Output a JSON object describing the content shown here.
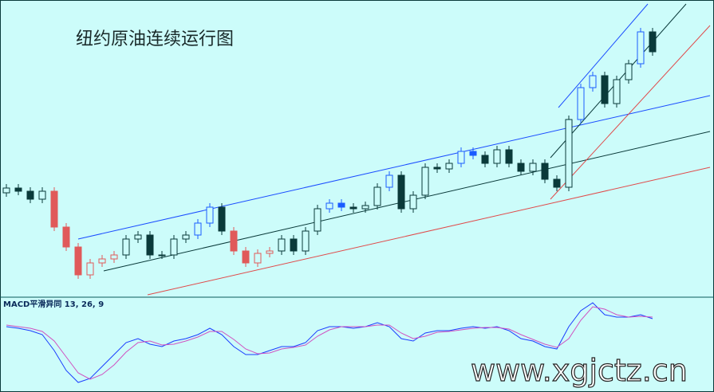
{
  "chart_data": [
    {
      "type": "candlestick",
      "title": "纽约原油连续运行图",
      "open": [
        138,
        144,
        140,
        130,
        140,
        95,
        70,
        35,
        50,
        55,
        60,
        80,
        85,
        60,
        60,
        80,
        85,
        100,
        120,
        90,
        65,
        50,
        62,
        65,
        80,
        65,
        90,
        118,
        125,
        120,
        118,
        122,
        145,
        160,
        118,
        135,
        170,
        168,
        175,
        190,
        185,
        175,
        192,
        175,
        165,
        175,
        155,
        145,
        230,
        270,
        285,
        250,
        280,
        300,
        340
      ],
      "high": [
        149,
        149,
        145,
        145,
        145,
        100,
        75,
        55,
        60,
        65,
        85,
        90,
        90,
        65,
        85,
        90,
        105,
        125,
        125,
        95,
        70,
        67,
        70,
        85,
        85,
        95,
        123,
        130,
        130,
        125,
        127,
        150,
        165,
        165,
        140,
        175,
        175,
        180,
        195,
        195,
        190,
        197,
        197,
        180,
        180,
        180,
        160,
        235,
        275,
        290,
        290,
        285,
        305,
        345,
        345
      ],
      "low": [
        133,
        135,
        125,
        125,
        90,
        65,
        30,
        30,
        45,
        50,
        55,
        75,
        55,
        55,
        55,
        75,
        80,
        95,
        85,
        60,
        45,
        45,
        57,
        60,
        60,
        60,
        85,
        113,
        115,
        113,
        113,
        117,
        140,
        113,
        113,
        130,
        163,
        163,
        170,
        180,
        170,
        170,
        170,
        160,
        160,
        150,
        140,
        140,
        225,
        265,
        245,
        245,
        275,
        295,
        310
      ],
      "close": [
        144,
        140,
        130,
        140,
        95,
        70,
        35,
        50,
        55,
        60,
        80,
        85,
        60,
        60,
        80,
        85,
        100,
        120,
        90,
        65,
        50,
        62,
        65,
        80,
        65,
        90,
        118,
        125,
        120,
        118,
        122,
        145,
        160,
        118,
        135,
        170,
        168,
        175,
        190,
        185,
        175,
        192,
        175,
        165,
        175,
        155,
        145,
        230,
        270,
        285,
        250,
        280,
        300,
        340,
        315
      ],
      "colors": [
        "#0a3a3a",
        "#0a3a3a",
        "#0a3a3a",
        "#0a3a3a",
        "#e05a5a",
        "#e05a5a",
        "#e05a5a",
        "#e05a5a",
        "#e05a5a",
        "#e05a5a",
        "#0a3a3a",
        "#0a3a3a",
        "#0a3a3a",
        "#0a3a3a",
        "#0a3a3a",
        "#0a3a3a",
        "#1a5cff",
        "#1a5cff",
        "#0a3a3a",
        "#e05a5a",
        "#e05a5a",
        "#e05a5a",
        "#e05a5a",
        "#0a3a3a",
        "#0a3a3a",
        "#0a3a3a",
        "#0a3a3a",
        "#1a5cff",
        "#1a5cff",
        "#0a3a3a",
        "#0a3a3a",
        "#0a3a3a",
        "#1a5cff",
        "#0a3a3a",
        "#0a3a3a",
        "#0a3a3a",
        "#0a3a3a",
        "#0a3a3a",
        "#1a5cff",
        "#1a5cff",
        "#0a3a3a",
        "#0a3a3a",
        "#0a3a3a",
        "#0a3a3a",
        "#0a3a3a",
        "#0a3a3a",
        "#0a3a3a",
        "#0a3a3a",
        "#1a5cff",
        "#1a5cff",
        "#0a3a3a",
        "#0a3a3a",
        "#0a3a3a",
        "#1a5cff",
        "#0a3a3a"
      ],
      "ylim": [
        8,
        380
      ]
    },
    {
      "type": "line",
      "title": "MACD平滑异同 13, 26, 9",
      "series": [
        {
          "color": "#1a3cff",
          "values": [
            20,
            18,
            15,
            10,
            -10,
            -35,
            -50,
            -45,
            -30,
            -15,
            0,
            5,
            -2,
            -5,
            2,
            5,
            10,
            18,
            10,
            -5,
            -15,
            -15,
            -10,
            -5,
            -5,
            0,
            15,
            20,
            20,
            18,
            20,
            25,
            20,
            5,
            2,
            12,
            15,
            15,
            18,
            20,
            18,
            20,
            15,
            5,
            2,
            -5,
            -8,
            20,
            40,
            50,
            35,
            32,
            32,
            35,
            30
          ]
        },
        {
          "color": "#d050c0",
          "values": [
            22,
            20,
            18,
            14,
            2,
            -18,
            -38,
            -46,
            -40,
            -28,
            -12,
            0,
            2,
            -3,
            -2,
            2,
            7,
            14,
            14,
            4,
            -8,
            -14,
            -13,
            -8,
            -6,
            -3,
            8,
            16,
            20,
            20,
            20,
            22,
            22,
            12,
            5,
            8,
            13,
            14,
            16,
            18,
            19,
            19,
            17,
            10,
            4,
            -2,
            -6,
            5,
            28,
            45,
            42,
            35,
            32,
            33,
            32
          ]
        }
      ],
      "ylim": [
        -60,
        60
      ]
    }
  ],
  "watermark": "www.xgjctz.cn"
}
